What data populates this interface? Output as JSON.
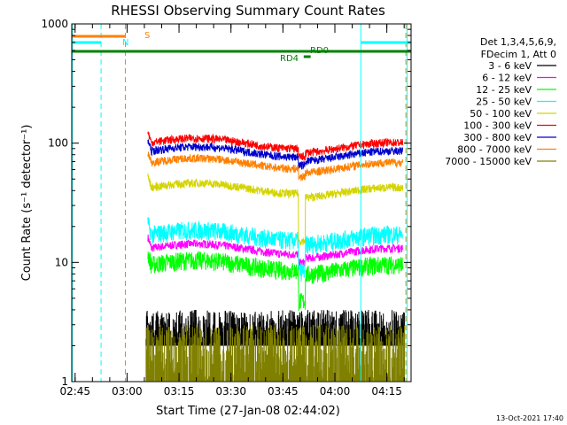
{
  "chart_data": {
    "type": "line",
    "title": "RHESSI Observing Summary Count Rates",
    "xlabel": "Start Time (27-Jan-08 02:44:02)",
    "ylabel": "Count Rate (s⁻¹ detector⁻¹)",
    "y_scale": "log",
    "ylim": [
      1,
      1000
    ],
    "xlim": [
      "02:44:02",
      "04:22:00"
    ],
    "x_ticks": [
      "02:45",
      "03:00",
      "03:15",
      "03:30",
      "03:45",
      "04:00",
      "04:15"
    ],
    "y_ticks": [
      "1",
      "10",
      "100",
      "1000"
    ],
    "legend": {
      "header": [
        "Det 1,3,4,5,6,9,",
        "FDecim 1, Att 0"
      ],
      "placement": "right"
    },
    "series": [
      {
        "name": "3 - 6 keV",
        "color": "#000000",
        "values_desc": "noisy between 2 and 4",
        "level": [
          [
            0,
            0
          ],
          [
            0,
            0
          ]
        ]
      },
      {
        "name": "6 - 12 keV",
        "color": "#ff00ff"
      },
      {
        "name": "12 - 25 keV",
        "color": "#00ff00"
      },
      {
        "name": "25 - 50 keV",
        "color": "#00ffff"
      },
      {
        "name": "50 - 100 keV",
        "color": "#d4d400"
      },
      {
        "name": "100 - 300 keV",
        "color": "#ff0000"
      },
      {
        "name": "300 - 800 keV",
        "color": "#0000cc"
      },
      {
        "name": "800 - 7000 keV",
        "color": "#ff8000"
      },
      {
        "name": "7000 - 15000 keV",
        "color": "#808000"
      }
    ],
    "annotations": {
      "s_flag": "S",
      "n_flag": "N",
      "rd0": "RD0",
      "rd4": "RD4"
    },
    "footer_timestamp": "13-Oct-2021 17:40"
  }
}
